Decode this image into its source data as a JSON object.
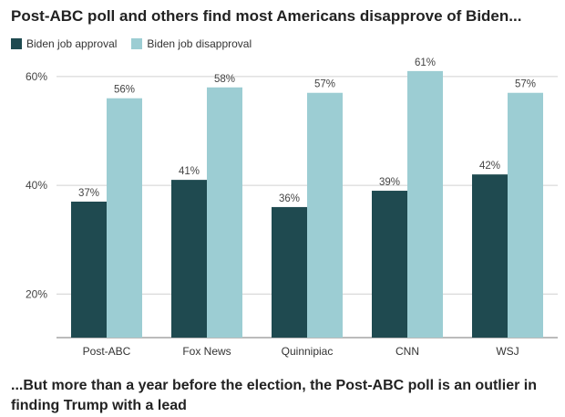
{
  "header": {
    "title": "Post-ABC poll and others find most Americans disapprove of Biden..."
  },
  "footer": {
    "text": "...But more than a year before the election, the Post-ABC poll is an outlier in finding Trump with a lead"
  },
  "colors": {
    "approval": "#1f4a50",
    "disapproval": "#9ccdd3",
    "grid": "#d0d0d0",
    "baseline": "#777777"
  },
  "chart_data": {
    "type": "bar",
    "categories": [
      "Post-ABC",
      "Fox News",
      "Quinnipiac",
      "CNN",
      "WSJ"
    ],
    "series": [
      {
        "name": "Biden job approval",
        "values": [
          37,
          41,
          36,
          39,
          42
        ]
      },
      {
        "name": "Biden job disapproval",
        "values": [
          56,
          58,
          57,
          61,
          57
        ]
      }
    ],
    "value_labels": [
      [
        "37%",
        "41%",
        "36%",
        "39%",
        "42%"
      ],
      [
        "56%",
        "58%",
        "57%",
        "61%",
        "57%"
      ]
    ],
    "yticks": [
      20,
      40,
      60
    ],
    "ytick_labels": [
      "20%",
      "40%",
      "60%"
    ],
    "ylim": [
      12,
      64
    ],
    "grid": true,
    "legend": "top-left"
  }
}
